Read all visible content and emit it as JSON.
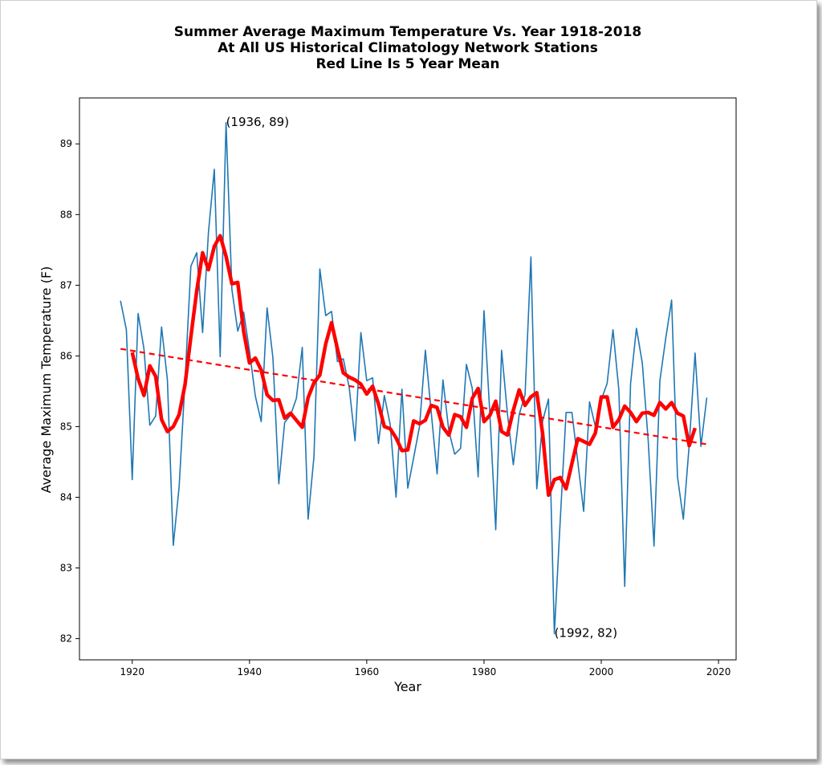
{
  "chart_data": {
    "type": "line",
    "title": [
      "Summer Average Maximum Temperature Vs. Year 1918-2018",
      "At All US Historical Climatology Network Stations",
      "Red Line Is 5 Year Mean"
    ],
    "xlabel": "Year",
    "ylabel": "Average Maximum Temperature (F)",
    "xlim": [
      1911,
      2023
    ],
    "ylim": [
      81.7,
      89.65
    ],
    "xticks": [
      1920,
      1940,
      1960,
      1980,
      2000,
      2020
    ],
    "yticks": [
      82,
      83,
      84,
      85,
      86,
      87,
      88,
      89
    ],
    "grid": false,
    "colors": {
      "annual": "#1f77b4",
      "mean": "#ff0000",
      "trend": "#ff0000"
    },
    "series": [
      {
        "style": "annual",
        "x": [
          1918,
          1919,
          1920,
          1921,
          1922,
          1923,
          1924,
          1925,
          1926,
          1927,
          1928,
          1929,
          1930,
          1931,
          1932,
          1933,
          1934,
          1935,
          1936,
          1937,
          1938,
          1939,
          1940,
          1941,
          1942,
          1943,
          1944,
          1945,
          1946,
          1947,
          1948,
          1949,
          1950,
          1951,
          1952,
          1953,
          1954,
          1955,
          1956,
          1957,
          1958,
          1959,
          1960,
          1961,
          1962,
          1963,
          1964,
          1965,
          1966,
          1967,
          1968,
          1969,
          1970,
          1971,
          1972,
          1973,
          1974,
          1975,
          1976,
          1977,
          1978,
          1979,
          1980,
          1981,
          1982,
          1983,
          1984,
          1985,
          1986,
          1987,
          1988,
          1989,
          1990,
          1991,
          1992,
          1993,
          1994,
          1995,
          1996,
          1997,
          1998,
          1999,
          2000,
          2001,
          2002,
          2003,
          2004,
          2005,
          2006,
          2007,
          2008,
          2009,
          2010,
          2011,
          2012,
          2013,
          2014,
          2015,
          2016,
          2017,
          2018
        ],
        "values": [
          86.78,
          86.37,
          84.25,
          86.6,
          86.1,
          85.02,
          85.15,
          86.41,
          85.66,
          83.32,
          84.15,
          85.64,
          87.27,
          87.46,
          86.33,
          87.75,
          88.64,
          85.99,
          89.3,
          86.94,
          86.35,
          86.62,
          86.07,
          85.43,
          85.07,
          86.68,
          85.97,
          84.19,
          85.06,
          85.16,
          85.4,
          86.12,
          83.69,
          84.58,
          87.23,
          86.57,
          86.63,
          85.92,
          85.96,
          85.56,
          84.8,
          86.33,
          85.65,
          85.69,
          84.76,
          85.44,
          85.03,
          84.0,
          85.53,
          84.13,
          84.56,
          85.0,
          86.08,
          85.2,
          84.33,
          85.66,
          84.94,
          84.61,
          84.69,
          85.88,
          85.54,
          84.29,
          86.64,
          85.18,
          83.54,
          86.08,
          85.18,
          84.46,
          85.17,
          85.45,
          87.4,
          84.12,
          85.08,
          85.39,
          82.07,
          83.67,
          85.2,
          85.2,
          84.5,
          83.8,
          85.35,
          85.0,
          85.38,
          85.61,
          86.37,
          85.52,
          82.74,
          85.61,
          86.39,
          85.9,
          84.81,
          83.31,
          85.65,
          86.25,
          86.79,
          84.29,
          83.69,
          84.74,
          86.04,
          84.72,
          85.41
        ]
      },
      {
        "style": "mean",
        "x": [
          1920,
          1921,
          1922,
          1923,
          1924,
          1925,
          1926,
          1927,
          1928,
          1929,
          1930,
          1931,
          1932,
          1933,
          1934,
          1935,
          1936,
          1937,
          1938,
          1939,
          1940,
          1941,
          1942,
          1943,
          1944,
          1945,
          1946,
          1947,
          1948,
          1949,
          1950,
          1951,
          1952,
          1953,
          1954,
          1955,
          1956,
          1957,
          1958,
          1959,
          1960,
          1961,
          1962,
          1963,
          1964,
          1965,
          1966,
          1967,
          1968,
          1969,
          1970,
          1971,
          1972,
          1973,
          1974,
          1975,
          1976,
          1977,
          1978,
          1979,
          1980,
          1981,
          1982,
          1983,
          1984,
          1985,
          1986,
          1987,
          1988,
          1989,
          1990,
          1991,
          1992,
          1993,
          1994,
          1995,
          1996,
          1997,
          1998,
          1999,
          2000,
          2001,
          2002,
          2003,
          2004,
          2005,
          2006,
          2007,
          2008,
          2009,
          2010,
          2011,
          2012,
          2013,
          2014,
          2015,
          2016
        ],
        "values": [
          86.05,
          85.68,
          85.44,
          85.86,
          85.71,
          85.1,
          84.93,
          85.0,
          85.17,
          85.59,
          86.27,
          86.92,
          87.46,
          87.22,
          87.55,
          87.7,
          87.41,
          87.02,
          87.04,
          86.35,
          85.9,
          85.97,
          85.8,
          85.45,
          85.37,
          85.38,
          85.12,
          85.19,
          85.09,
          84.99,
          85.41,
          85.62,
          85.73,
          86.17,
          86.47,
          86.1,
          85.76,
          85.7,
          85.66,
          85.6,
          85.46,
          85.57,
          85.32,
          85.0,
          84.97,
          84.84,
          84.66,
          84.67,
          85.08,
          85.04,
          85.09,
          85.3,
          85.27,
          84.99,
          84.88,
          85.17,
          85.14,
          84.99,
          85.4,
          85.54,
          85.07,
          85.16,
          85.36,
          84.93,
          84.88,
          85.23,
          85.52,
          85.3,
          85.42,
          85.48,
          84.9,
          84.03,
          84.25,
          84.28,
          84.12,
          84.48,
          84.83,
          84.79,
          84.75,
          84.91,
          85.42,
          85.42,
          84.99,
          85.1,
          85.29,
          85.2,
          85.07,
          85.19,
          85.2,
          85.16,
          85.34,
          85.25,
          85.34,
          85.19,
          85.15,
          84.73,
          84.98
        ]
      },
      {
        "style": "trend",
        "x": [
          1918,
          2018
        ],
        "values": [
          86.1,
          84.75
        ]
      }
    ],
    "annotations": [
      {
        "text": "(1936, 89)",
        "x": 1936,
        "y": 89.3,
        "align": "bottom-left"
      },
      {
        "text": "(1992, 82)",
        "x": 1992,
        "y": 82.07,
        "align": "bottom-left"
      }
    ]
  }
}
